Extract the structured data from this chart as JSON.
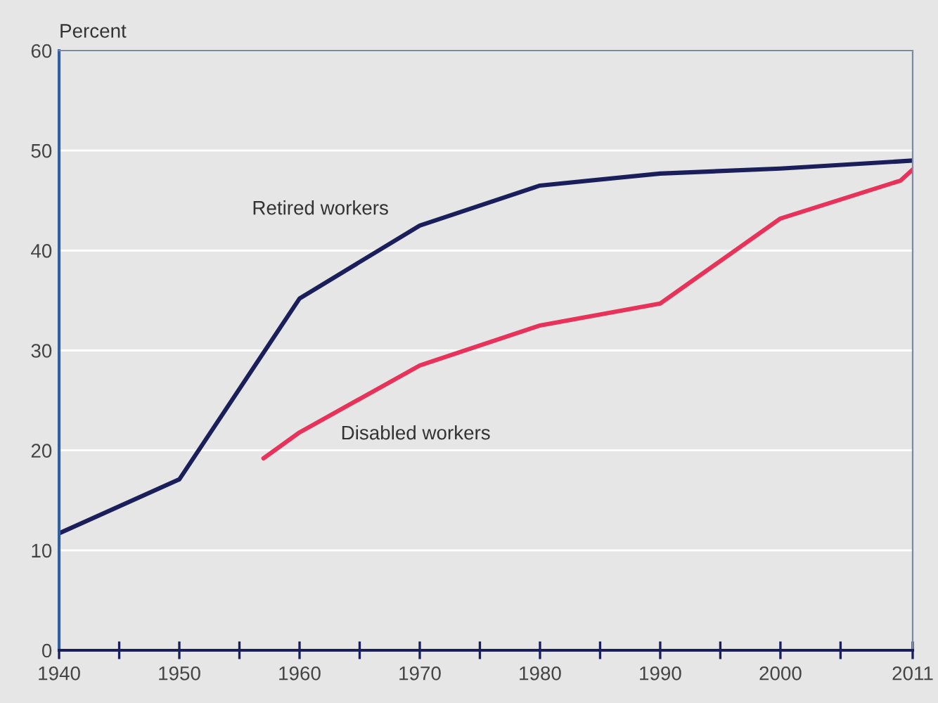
{
  "chart_data": {
    "type": "line",
    "ylabel": "Percent",
    "xlim": [
      1940,
      2011
    ],
    "ylim": [
      0,
      60
    ],
    "xticks": [
      1940,
      {
        "value": 1945,
        "label": null
      },
      1950,
      {
        "value": 1955,
        "label": null
      },
      1960,
      {
        "value": 1965,
        "label": null
      },
      1970,
      {
        "value": 1975,
        "label": null
      },
      1980,
      {
        "value": 1985,
        "label": null
      },
      1990,
      {
        "value": 1995,
        "label": null
      },
      2000,
      {
        "value": 2005,
        "label": null
      },
      2011
    ],
    "yticks": [
      0,
      10,
      20,
      30,
      40,
      50,
      60
    ],
    "grid": "y",
    "legend": false,
    "series": [
      {
        "name": "Retired workers",
        "color": "#1a1f5c",
        "x": [
          1940,
          1950,
          1960,
          1970,
          1980,
          1990,
          2000,
          2011
        ],
        "values": [
          11.7,
          17.1,
          35.2,
          42.5,
          46.5,
          47.7,
          48.2,
          49.0
        ]
      },
      {
        "name": "Disabled workers",
        "color": "#e8325a",
        "x": [
          1957,
          1960,
          1970,
          1980,
          1990,
          2000,
          2010,
          2011
        ],
        "values": [
          19.2,
          21.8,
          28.5,
          32.5,
          34.7,
          43.2,
          47.0,
          48.1
        ]
      }
    ]
  }
}
